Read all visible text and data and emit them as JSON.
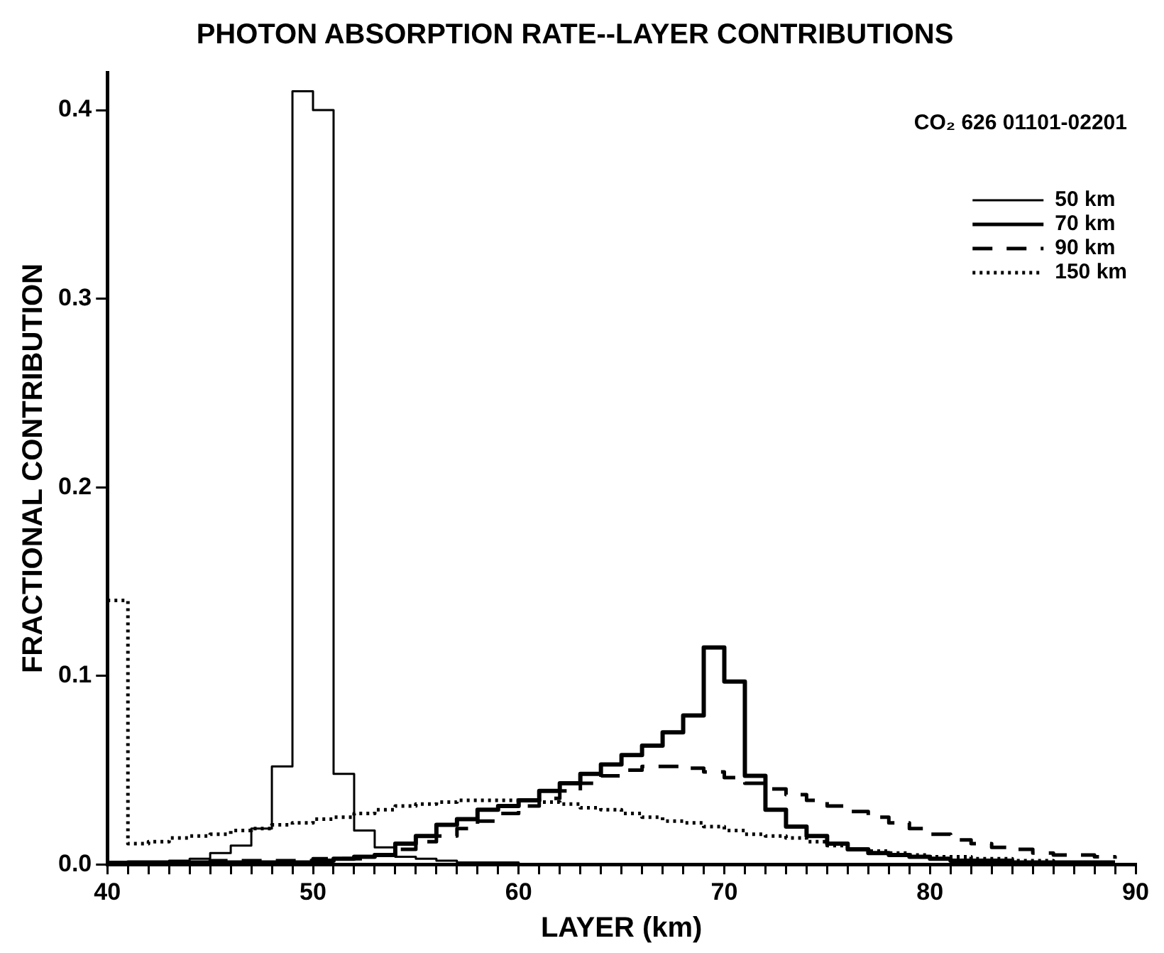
{
  "chart_data": {
    "type": "step",
    "title": "PHOTON ABSORPTION RATE--LAYER CONTRIBUTIONS",
    "xlabel": "LAYER (km)",
    "ylabel": "FRACTIONAL CONTRIBUTION",
    "annotations": [
      "CO₂ 626 01101-02201"
    ],
    "x": [
      40,
      41,
      42,
      43,
      44,
      45,
      46,
      47,
      48,
      49,
      50,
      51,
      52,
      53,
      54,
      55,
      56,
      57,
      58,
      59,
      60,
      61,
      62,
      63,
      64,
      65,
      66,
      67,
      68,
      69,
      70,
      71,
      72,
      73,
      74,
      75,
      76,
      77,
      78,
      79,
      80,
      81,
      82,
      83,
      84,
      85,
      86,
      87,
      88,
      89
    ],
    "series": [
      {
        "name": "50 km",
        "color": "#000000",
        "line_style": "solid",
        "values": [
          0,
          0.001,
          0.001,
          0.002,
          0.003,
          0.006,
          0.01,
          0.019,
          0.052,
          0.41,
          0.4,
          0.048,
          0.018,
          0.009,
          0.004,
          0.003,
          0.002,
          0.001,
          0.001,
          0.001,
          0,
          0,
          0,
          0,
          0,
          0,
          0,
          0,
          0,
          0,
          0,
          0,
          0,
          0,
          0,
          0,
          0,
          0,
          0,
          0,
          0,
          0,
          0,
          0,
          0,
          0,
          0,
          0,
          0,
          0
        ]
      },
      {
        "name": "70 km",
        "color": "#000000",
        "line_style": "solid",
        "values": [
          0,
          0.001,
          0.001,
          0.001,
          0.001,
          0.001,
          0.001,
          0.001,
          0.001,
          0.001,
          0.002,
          0.003,
          0.004,
          0.005,
          0.011,
          0.015,
          0.021,
          0.024,
          0.029,
          0.031,
          0.034,
          0.039,
          0.043,
          0.048,
          0.053,
          0.058,
          0.063,
          0.07,
          0.079,
          0.115,
          0.097,
          0.047,
          0.029,
          0.02,
          0.015,
          0.011,
          0.008,
          0.006,
          0.005,
          0.004,
          0.003,
          0.002,
          0.002,
          0.002,
          0.001,
          0.001,
          0.001,
          0.001,
          0.001,
          0.001
        ]
      },
      {
        "name": "90 km",
        "color": "#000000",
        "line_style": "dashed",
        "values": [
          0.001,
          0.001,
          0.001,
          0.001,
          0.001,
          0.002,
          0.002,
          0.002,
          0.002,
          0.002,
          0.003,
          0.003,
          0.003,
          0.005,
          0.008,
          0.012,
          0.015,
          0.019,
          0.023,
          0.027,
          0.031,
          0.035,
          0.039,
          0.043,
          0.047,
          0.05,
          0.052,
          0.052,
          0.051,
          0.049,
          0.046,
          0.043,
          0.04,
          0.037,
          0.034,
          0.031,
          0.028,
          0.025,
          0.022,
          0.019,
          0.016,
          0.013,
          0.011,
          0.009,
          0.008,
          0.006,
          0.005,
          0.005,
          0.004,
          0.003
        ]
      },
      {
        "name": "150 km",
        "color": "#000000",
        "line_style": "dotted",
        "values": [
          0.14,
          0.011,
          0.012,
          0.014,
          0.015,
          0.016,
          0.018,
          0.019,
          0.021,
          0.022,
          0.024,
          0.025,
          0.027,
          0.029,
          0.031,
          0.032,
          0.033,
          0.034,
          0.034,
          0.034,
          0.034,
          0.033,
          0.032,
          0.03,
          0.029,
          0.027,
          0.025,
          0.023,
          0.022,
          0.02,
          0.018,
          0.016,
          0.015,
          0.014,
          0.012,
          0.01,
          0.008,
          0.007,
          0.006,
          0.005,
          0.004,
          0.004,
          0.003,
          0.003,
          0.002,
          0.002,
          0.001,
          0.001,
          0.001,
          0.001
        ]
      }
    ],
    "xlim": [
      40,
      90
    ],
    "xticks": [
      40,
      {
        "value": 41,
        "label": null
      },
      {
        "value": 42,
        "label": null
      },
      {
        "value": 43,
        "label": null
      },
      {
        "value": 44,
        "label": null
      },
      {
        "value": 45,
        "label": null
      },
      {
        "value": 46,
        "label": null
      },
      {
        "value": 47,
        "label": null
      },
      {
        "value": 48,
        "label": null
      },
      {
        "value": 49,
        "label": null
      },
      50,
      {
        "value": 51,
        "label": null
      },
      {
        "value": 52,
        "label": null
      },
      {
        "value": 53,
        "label": null
      },
      {
        "value": 54,
        "label": null
      },
      {
        "value": 55,
        "label": null
      },
      {
        "value": 56,
        "label": null
      },
      {
        "value": 57,
        "label": null
      },
      {
        "value": 58,
        "label": null
      },
      {
        "value": 59,
        "label": null
      },
      60,
      {
        "value": 61,
        "label": null
      },
      {
        "value": 62,
        "label": null
      },
      {
        "value": 63,
        "label": null
      },
      {
        "value": 64,
        "label": null
      },
      {
        "value": 65,
        "label": null
      },
      {
        "value": 66,
        "label": null
      },
      {
        "value": 67,
        "label": null
      },
      {
        "value": 68,
        "label": null
      },
      {
        "value": 69,
        "label": null
      },
      70,
      {
        "value": 71,
        "label": null
      },
      {
        "value": 72,
        "label": null
      },
      {
        "value": 73,
        "label": null
      },
      {
        "value": 74,
        "label": null
      },
      {
        "value": 75,
        "label": null
      },
      {
        "value": 76,
        "label": null
      },
      {
        "value": 77,
        "label": null
      },
      {
        "value": 78,
        "label": null
      },
      {
        "value": 79,
        "label": null
      },
      80,
      {
        "value": 81,
        "label": null
      },
      {
        "value": 82,
        "label": null
      },
      {
        "value": 83,
        "label": null
      },
      {
        "value": 84,
        "label": null
      },
      {
        "value": 85,
        "label": null
      },
      {
        "value": 86,
        "label": null
      },
      {
        "value": 87,
        "label": null
      },
      {
        "value": 88,
        "label": null
      },
      {
        "value": 89,
        "label": null
      },
      90
    ],
    "ylim": [
      0,
      0.42
    ],
    "yticks": [
      {
        "value": 0,
        "label": "0.0"
      },
      {
        "value": 0.1,
        "label": "0.1"
      },
      {
        "value": 0.2,
        "label": "0.2"
      },
      {
        "value": 0.3,
        "label": "0.3"
      },
      {
        "value": 0.4,
        "label": "0.4"
      }
    ],
    "grid": false,
    "legend": "top right",
    "marker": "none"
  }
}
